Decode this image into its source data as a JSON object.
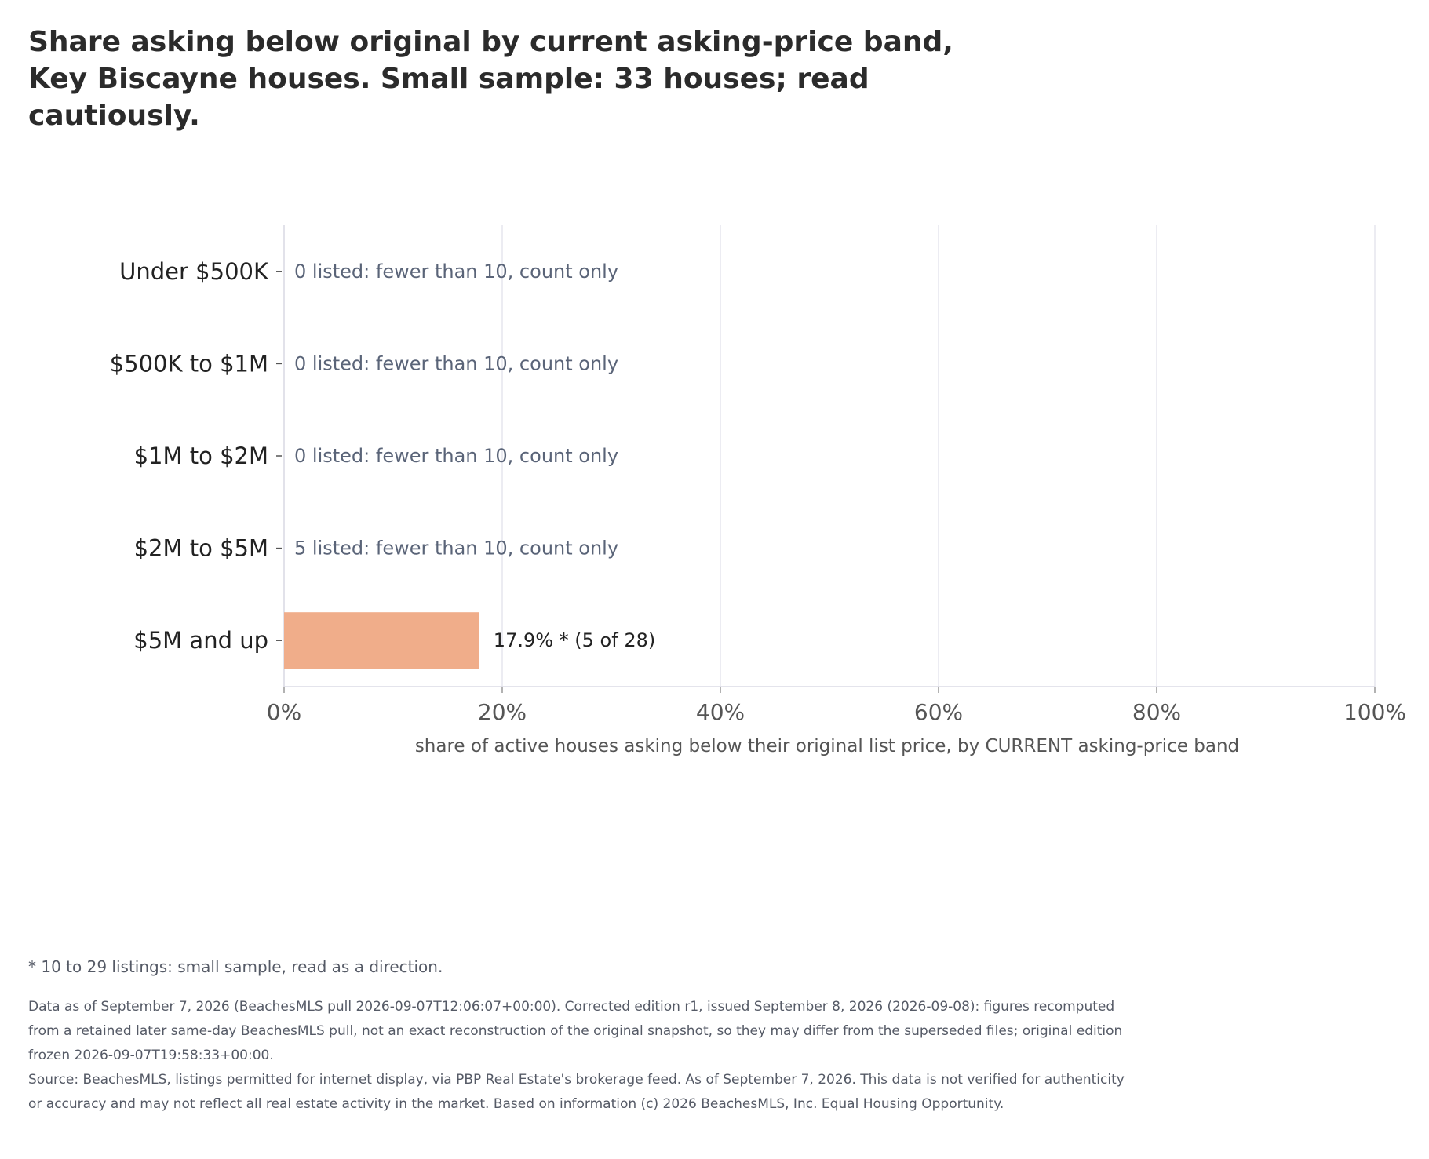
{
  "chart_data": {
    "type": "bar",
    "orientation": "horizontal",
    "title": "Share asking below original by current asking-price band, Key Biscayne houses. Small sample: 33 houses; read cautiously.",
    "xlabel": "share of active houses asking below their original list price, by CURRENT asking-price band",
    "ylabel": "",
    "xlim": [
      0,
      100
    ],
    "x_ticks": [
      "0%",
      "20%",
      "40%",
      "60%",
      "80%",
      "100%"
    ],
    "grid": "vertical",
    "categories": [
      "Under $500K",
      "$500K to $1M",
      "$1M to $2M",
      "$2M to $5M",
      "$5M and up"
    ],
    "values": [
      null,
      null,
      null,
      null,
      17.9
    ],
    "labels": [
      "0 listed: fewer than 10, count only",
      "0 listed: fewer than 10, count only",
      "0 listed: fewer than 10, count only",
      "5 listed: fewer than 10, count only",
      "17.9% *  (5 of 28)"
    ],
    "bar_color": "#f0ad8a",
    "muted_label_color": "#5a6478"
  },
  "footnote": "* 10 to 29 listings: small sample, read as a direction.",
  "notes": {
    "data_note": "Data as of September 7, 2026 (BeachesMLS pull 2026-09-07T12:06:07+00:00). Corrected edition r1, issued September 8, 2026 (2026-09-08): figures recomputed from a retained later same-day BeachesMLS pull, not an exact reconstruction of the original snapshot, so they may differ from the superseded files; original edition frozen 2026-09-07T19:58:33+00:00.",
    "source": "Source: BeachesMLS, listings permitted for internet display, via PBP Real Estate's brokerage feed. As of September 7, 2026. This data is not verified for authenticity or accuracy and may not reflect all real estate activity in the market. Based on information (c) 2026 BeachesMLS, Inc. Equal Housing Opportunity."
  }
}
